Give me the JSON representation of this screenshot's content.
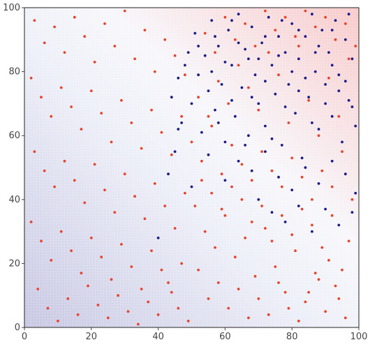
{
  "chart_data": {
    "type": "scatter",
    "title": "",
    "xlabel": "",
    "ylabel": "",
    "xlim": [
      0,
      100
    ],
    "ylim": [
      0,
      100
    ],
    "x_ticks": [
      "0",
      "20",
      "40",
      "60",
      "80",
      "100"
    ],
    "y_ticks": [
      "0",
      "20",
      "40",
      "60",
      "80",
      "100"
    ],
    "grid": true,
    "legend": "none",
    "background": "heatmap (decision surface) — blue tint lower-left, red tint upper-right",
    "series": [
      {
        "color": "#e8432b",
        "points": [
          [
            3,
            96
          ],
          [
            6,
            89
          ],
          [
            9,
            94
          ],
          [
            12,
            86
          ],
          [
            15,
            97
          ],
          [
            18,
            91
          ],
          [
            21,
            83
          ],
          [
            24,
            95
          ],
          [
            27,
            88
          ],
          [
            30,
            99
          ],
          [
            33,
            84
          ],
          [
            36,
            93
          ],
          [
            39,
            80
          ],
          [
            42,
            90
          ],
          [
            45,
            85
          ],
          [
            48,
            79
          ],
          [
            2,
            78
          ],
          [
            5,
            72
          ],
          [
            8,
            66
          ],
          [
            11,
            75
          ],
          [
            14,
            69
          ],
          [
            17,
            62
          ],
          [
            20,
            74
          ],
          [
            23,
            67
          ],
          [
            26,
            58
          ],
          [
            29,
            71
          ],
          [
            32,
            64
          ],
          [
            35,
            56
          ],
          [
            38,
            68
          ],
          [
            41,
            61
          ],
          [
            44,
            54
          ],
          [
            47,
            66
          ],
          [
            3,
            55
          ],
          [
            6,
            49
          ],
          [
            9,
            44
          ],
          [
            12,
            52
          ],
          [
            15,
            46
          ],
          [
            18,
            39
          ],
          [
            21,
            51
          ],
          [
            24,
            43
          ],
          [
            27,
            36
          ],
          [
            30,
            48
          ],
          [
            33,
            41
          ],
          [
            36,
            34
          ],
          [
            39,
            45
          ],
          [
            42,
            38
          ],
          [
            45,
            31
          ],
          [
            48,
            42
          ],
          [
            2,
            33
          ],
          [
            5,
            27
          ],
          [
            8,
            21
          ],
          [
            11,
            30
          ],
          [
            14,
            24
          ],
          [
            17,
            17
          ],
          [
            20,
            28
          ],
          [
            23,
            22
          ],
          [
            26,
            15
          ],
          [
            29,
            26
          ],
          [
            32,
            19
          ],
          [
            35,
            12
          ],
          [
            38,
            24
          ],
          [
            41,
            18
          ],
          [
            44,
            11
          ],
          [
            47,
            20
          ],
          [
            4,
            12
          ],
          [
            7,
            6
          ],
          [
            10,
            2
          ],
          [
            13,
            9
          ],
          [
            16,
            4
          ],
          [
            19,
            13
          ],
          [
            22,
            7
          ],
          [
            25,
            3
          ],
          [
            28,
            10
          ],
          [
            31,
            5
          ],
          [
            34,
            1
          ],
          [
            37,
            8
          ],
          [
            40,
            4
          ],
          [
            43,
            14
          ],
          [
            46,
            6
          ],
          [
            49,
            2
          ],
          [
            51,
            38
          ],
          [
            54,
            30
          ],
          [
            57,
            25
          ],
          [
            60,
            35
          ],
          [
            63,
            22
          ],
          [
            66,
            28
          ],
          [
            69,
            16
          ],
          [
            72,
            31
          ],
          [
            75,
            19
          ],
          [
            78,
            11
          ],
          [
            81,
            24
          ],
          [
            84,
            8
          ],
          [
            87,
            17
          ],
          [
            90,
            5
          ],
          [
            93,
            13
          ],
          [
            96,
            3
          ],
          [
            52,
            18
          ],
          [
            55,
            9
          ],
          [
            58,
            14
          ],
          [
            61,
            6
          ],
          [
            64,
            12
          ],
          [
            67,
            3
          ],
          [
            70,
            9
          ],
          [
            73,
            4
          ],
          [
            76,
            14
          ],
          [
            79,
            6
          ],
          [
            82,
            2
          ],
          [
            85,
            11
          ],
          [
            88,
            15
          ],
          [
            91,
            21
          ],
          [
            94,
            9
          ],
          [
            97,
            27
          ],
          [
            53,
            46
          ],
          [
            56,
            42
          ],
          [
            59,
            37
          ],
          [
            62,
            44
          ],
          [
            65,
            40
          ],
          [
            68,
            33
          ],
          [
            71,
            38
          ],
          [
            74,
            27
          ],
          [
            77,
            35
          ],
          [
            80,
            29
          ],
          [
            83,
            37
          ],
          [
            86,
            32
          ],
          [
            89,
            25
          ],
          [
            92,
            35
          ],
          [
            95,
            18
          ],
          [
            98,
            40
          ],
          [
            50,
            58
          ],
          [
            53,
            52
          ],
          [
            56,
            63
          ],
          [
            59,
            48
          ],
          [
            62,
            57
          ],
          [
            65,
            51
          ],
          [
            68,
            46
          ],
          [
            71,
            55
          ],
          [
            74,
            49
          ],
          [
            77,
            44
          ],
          [
            80,
            53
          ],
          [
            83,
            47
          ],
          [
            86,
            40
          ],
          [
            89,
            49
          ],
          [
            92,
            44
          ],
          [
            95,
            55
          ],
          [
            52,
            72
          ],
          [
            55,
            66
          ],
          [
            58,
            77
          ],
          [
            61,
            70
          ],
          [
            64,
            82
          ],
          [
            67,
            75
          ],
          [
            70,
            68
          ],
          [
            73,
            86
          ],
          [
            76,
            79
          ],
          [
            79,
            64
          ],
          [
            82,
            88
          ],
          [
            85,
            71
          ],
          [
            88,
            60
          ],
          [
            91,
            78
          ],
          [
            94,
            66
          ],
          [
            97,
            84
          ],
          [
            54,
            92
          ],
          [
            57,
            86
          ],
          [
            60,
            97
          ],
          [
            63,
            90
          ],
          [
            66,
            95
          ],
          [
            69,
            88
          ],
          [
            72,
            99
          ],
          [
            75,
            93
          ],
          [
            78,
            97
          ],
          [
            81,
            91
          ],
          [
            84,
            99
          ],
          [
            87,
            94
          ],
          [
            90,
            97
          ],
          [
            93,
            90
          ],
          [
            96,
            95
          ],
          [
            99,
            88
          ]
        ]
      },
      {
        "color": "#1a1a8c",
        "points": [
          [
            44,
            72
          ],
          [
            46,
            78
          ],
          [
            47,
            64
          ],
          [
            49,
            86
          ],
          [
            50,
            70
          ],
          [
            51,
            92
          ],
          [
            52,
            79
          ],
          [
            53,
            61
          ],
          [
            54,
            85
          ],
          [
            55,
            74
          ],
          [
            56,
            96
          ],
          [
            57,
            68
          ],
          [
            58,
            88
          ],
          [
            59,
            76
          ],
          [
            60,
            58
          ],
          [
            61,
            93
          ],
          [
            62,
            82
          ],
          [
            63,
            66
          ],
          [
            64,
            98
          ],
          [
            65,
            75
          ],
          [
            66,
            87
          ],
          [
            67,
            60
          ],
          [
            68,
            94
          ],
          [
            69,
            79
          ],
          [
            70,
            70
          ],
          [
            71,
            89
          ],
          [
            72,
            63
          ],
          [
            73,
            97
          ],
          [
            74,
            82
          ],
          [
            75,
            73
          ],
          [
            76,
            91
          ],
          [
            77,
            57
          ],
          [
            78,
            86
          ],
          [
            79,
            76
          ],
          [
            80,
            95
          ],
          [
            81,
            67
          ],
          [
            82,
            84
          ],
          [
            83,
            53
          ],
          [
            84,
            91
          ],
          [
            85,
            72
          ],
          [
            86,
            98
          ],
          [
            87,
            80
          ],
          [
            88,
            62
          ],
          [
            89,
            93
          ],
          [
            90,
            76
          ],
          [
            91,
            86
          ],
          [
            92,
            66
          ],
          [
            93,
            96
          ],
          [
            94,
            79
          ],
          [
            95,
            58
          ],
          [
            96,
            90
          ],
          [
            97,
            71
          ],
          [
            98,
            84
          ],
          [
            99,
            63
          ],
          [
            64,
            52
          ],
          [
            68,
            49
          ],
          [
            72,
            55
          ],
          [
            76,
            47
          ],
          [
            80,
            43
          ],
          [
            84,
            50
          ],
          [
            88,
            45
          ],
          [
            92,
            52
          ],
          [
            96,
            48
          ],
          [
            99,
            42
          ],
          [
            70,
            40
          ],
          [
            74,
            36
          ],
          [
            78,
            33
          ],
          [
            82,
            38
          ],
          [
            86,
            30
          ],
          [
            90,
            37
          ],
          [
            94,
            32
          ],
          [
            98,
            36
          ],
          [
            58,
            64
          ],
          [
            62,
            71
          ],
          [
            66,
            57
          ],
          [
            70,
            84
          ],
          [
            74,
            59
          ],
          [
            78,
            69
          ],
          [
            82,
            74
          ],
          [
            86,
            64
          ],
          [
            90,
            70
          ],
          [
            94,
            74
          ],
          [
            98,
            69
          ],
          [
            56,
            80
          ],
          [
            60,
            83
          ],
          [
            64,
            89
          ],
          [
            68,
            72
          ],
          [
            72,
            77
          ],
          [
            76,
            85
          ],
          [
            80,
            80
          ],
          [
            84,
            78
          ],
          [
            88,
            88
          ],
          [
            92,
            82
          ],
          [
            96,
            77
          ],
          [
            52,
            88
          ],
          [
            57,
            91
          ],
          [
            62,
            96
          ],
          [
            67,
            84
          ],
          [
            72,
            91
          ],
          [
            77,
            96
          ],
          [
            82,
            93
          ],
          [
            87,
            86
          ],
          [
            92,
            93
          ],
          [
            97,
            98
          ],
          [
            48,
            82
          ],
          [
            46,
            62
          ],
          [
            43,
            48
          ],
          [
            40,
            28
          ],
          [
            45,
            55
          ],
          [
            50,
            44
          ],
          [
            55,
            54
          ],
          [
            60,
            46
          ]
        ]
      }
    ]
  }
}
